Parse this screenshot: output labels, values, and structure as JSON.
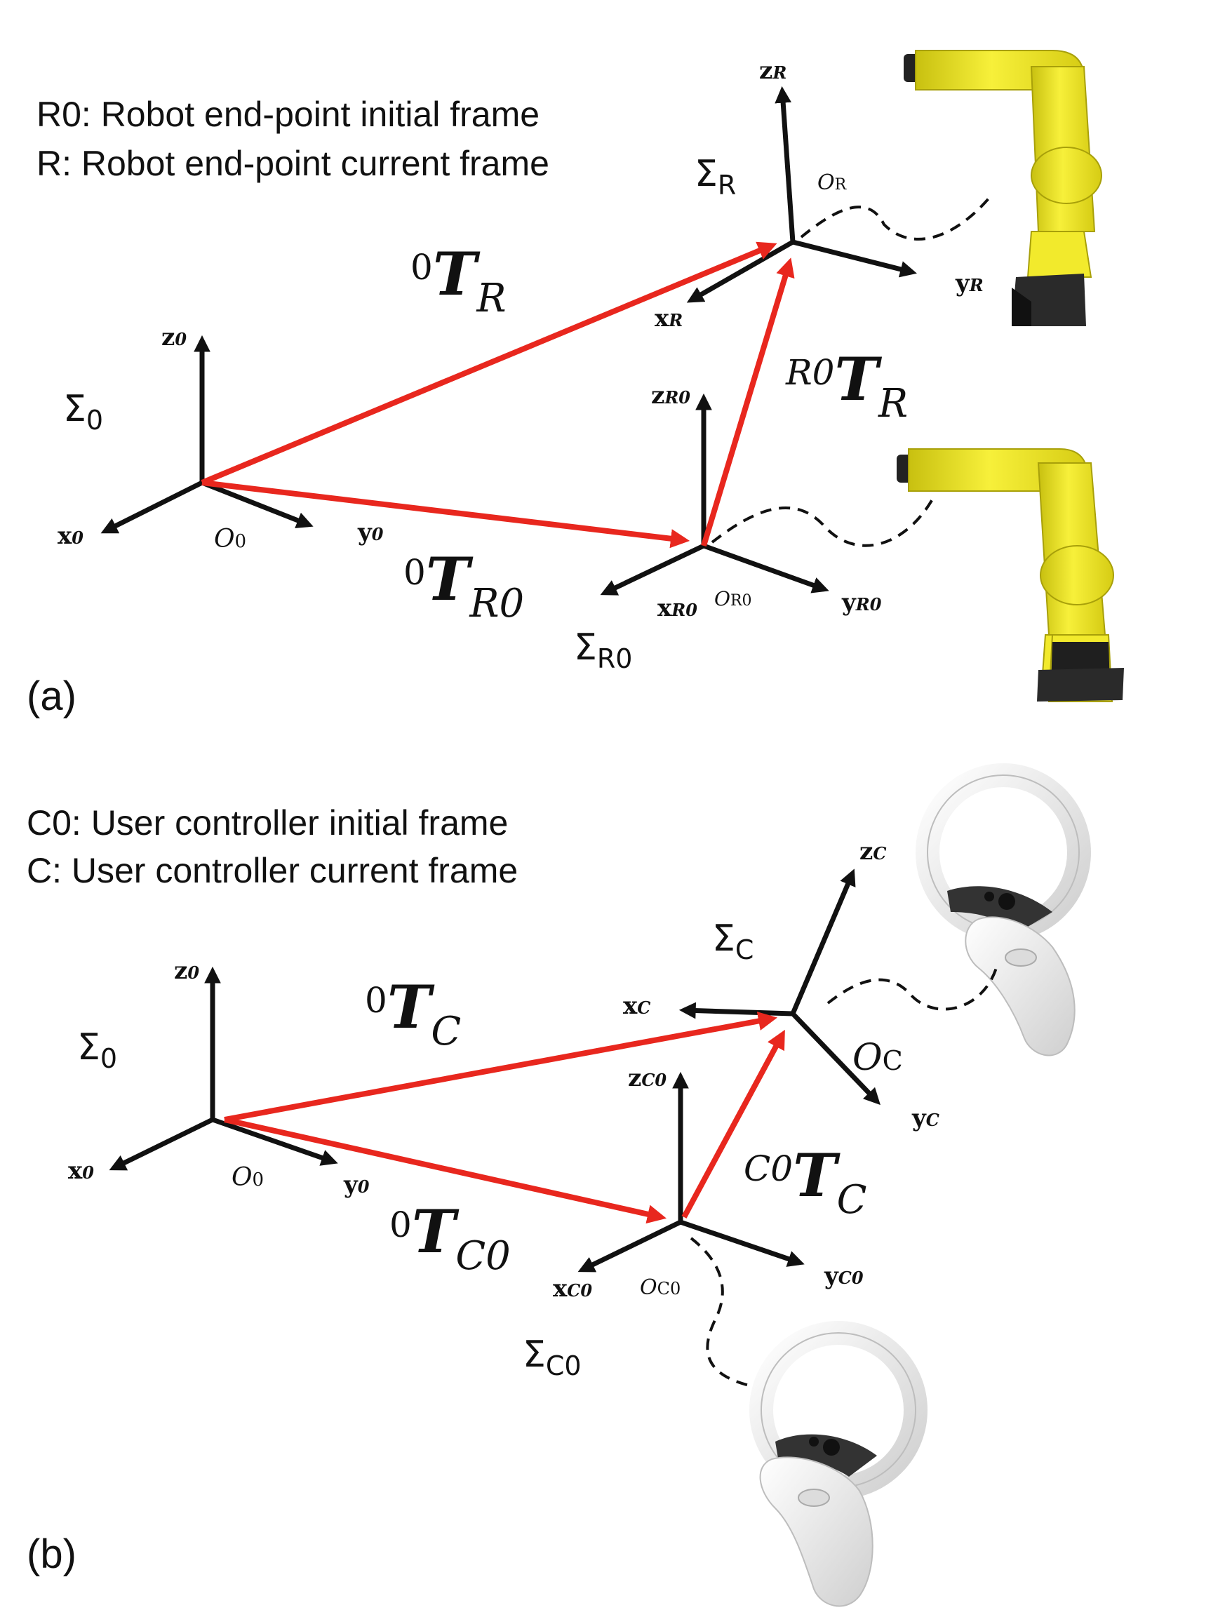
{
  "panel_a": {
    "label": "(a)",
    "legend": [
      "R0: Robot end-point initial frame",
      "R: Robot end-point current frame"
    ],
    "frames": {
      "world": {
        "sigma": "Σ",
        "sigma_sub": "0",
        "x": "x",
        "x_sub": "0",
        "y": "y",
        "y_sub": "0",
        "z": "z",
        "z_sub": "0",
        "origin": "O",
        "origin_sub": "0"
      },
      "initial": {
        "sigma": "Σ",
        "sigma_sub": "R0",
        "x": "x",
        "x_sub": "R0",
        "y": "y",
        "y_sub": "R0",
        "z": "z",
        "z_sub": "R0",
        "origin": "O",
        "origin_sub": "R0"
      },
      "current": {
        "sigma": "Σ",
        "sigma_sub": "R",
        "x": "x",
        "x_sub": "R",
        "y": "y",
        "y_sub": "R",
        "z": "z",
        "z_sub": "R",
        "origin": "O",
        "origin_sub": "R"
      }
    },
    "transforms": [
      {
        "sup": "0",
        "main": "T",
        "sub": "R"
      },
      {
        "sup": "0",
        "main": "T",
        "sub": "R0"
      },
      {
        "sup": "R0",
        "main": "T",
        "sub": "R"
      }
    ]
  },
  "panel_b": {
    "label": "(b)",
    "legend": [
      "C0: User controller initial frame",
      "C: User controller current frame"
    ],
    "frames": {
      "world": {
        "sigma": "Σ",
        "sigma_sub": "0",
        "x": "x",
        "x_sub": "0",
        "y": "y",
        "y_sub": "0",
        "z": "z",
        "z_sub": "0",
        "origin": "O",
        "origin_sub": "0"
      },
      "initial": {
        "sigma": "Σ",
        "sigma_sub": "C0",
        "x": "x",
        "x_sub": "C0",
        "y": "y",
        "y_sub": "C0",
        "z": "z",
        "z_sub": "C0",
        "origin": "O",
        "origin_sub": "C0"
      },
      "current": {
        "sigma": "Σ",
        "sigma_sub": "C",
        "x": "x",
        "x_sub": "C",
        "y": "y",
        "y_sub": "C",
        "z": "z",
        "z_sub": "C",
        "origin": "O",
        "origin_sub": "C"
      }
    },
    "transforms": [
      {
        "sup": "0",
        "main": "T",
        "sub": "C"
      },
      {
        "sup": "0",
        "main": "T",
        "sub": "C0"
      },
      {
        "sup": "C0",
        "main": "T",
        "sub": "C"
      }
    ]
  },
  "colors": {
    "transform_arrow": "#e8271e",
    "axis": "#111111",
    "robot_body": "#f2ea2c",
    "robot_base": "#2a2a2a",
    "controller": "#eeeeee"
  }
}
